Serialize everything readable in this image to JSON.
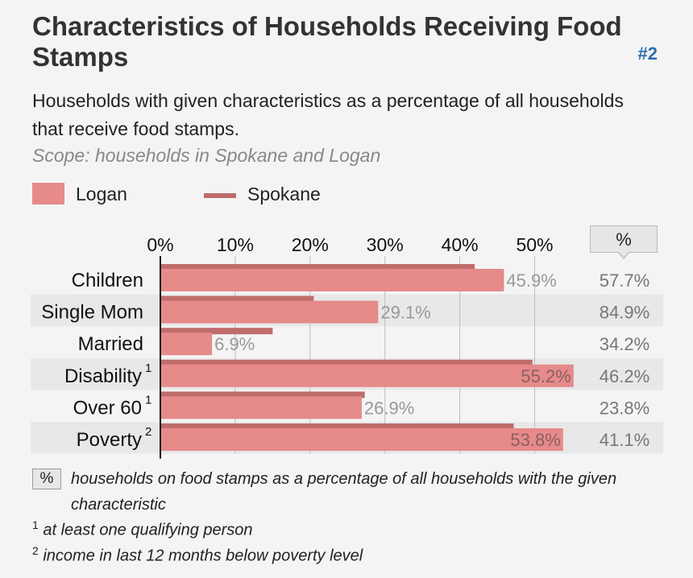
{
  "title": "Characteristics of Households Receiving Food Stamps",
  "rank": "#2",
  "subtitle": "Households with given characteristics as a percentage of all households that receive food stamps.",
  "scope": "Scope: households in Spokane and Logan",
  "legend": {
    "logan": "Logan",
    "spokane": "Spokane"
  },
  "pct_header": "%",
  "footnotes": {
    "pct_box": "%",
    "pct_text": "households on food stamps as a percentage of all households with the given characteristic",
    "fn1_mark": "1",
    "fn1_text": "at least one qualifying person",
    "fn2_mark": "2",
    "fn2_text": "income in last 12 months below poverty level"
  },
  "colors": {
    "logan": "#e68a8a",
    "spokane": "#c06c6c",
    "accent": "#2e6fae"
  },
  "chart_data": {
    "type": "bar",
    "orientation": "horizontal",
    "categories": [
      "Children",
      "Single Mom",
      "Married",
      "Disability",
      "Over 60",
      "Poverty"
    ],
    "category_superscripts": [
      "",
      "",
      "",
      "1",
      "1",
      "2"
    ],
    "x_ticks": [
      "0%",
      "10%",
      "20%",
      "30%",
      "40%",
      "50%"
    ],
    "xlim": [
      0,
      55.2
    ],
    "series": [
      {
        "name": "Logan",
        "values": [
          45.9,
          29.1,
          6.9,
          55.2,
          26.9,
          53.8
        ],
        "labels": [
          "45.9%",
          "29.1%",
          "6.9%",
          "55.2%",
          "26.9%",
          "53.8%"
        ]
      },
      {
        "name": "Spokane",
        "values": [
          42.0,
          20.5,
          15.0,
          49.7,
          27.3,
          47.2
        ]
      }
    ],
    "pct_column": [
      "57.7%",
      "84.9%",
      "34.2%",
      "46.2%",
      "23.8%",
      "41.1%"
    ]
  }
}
